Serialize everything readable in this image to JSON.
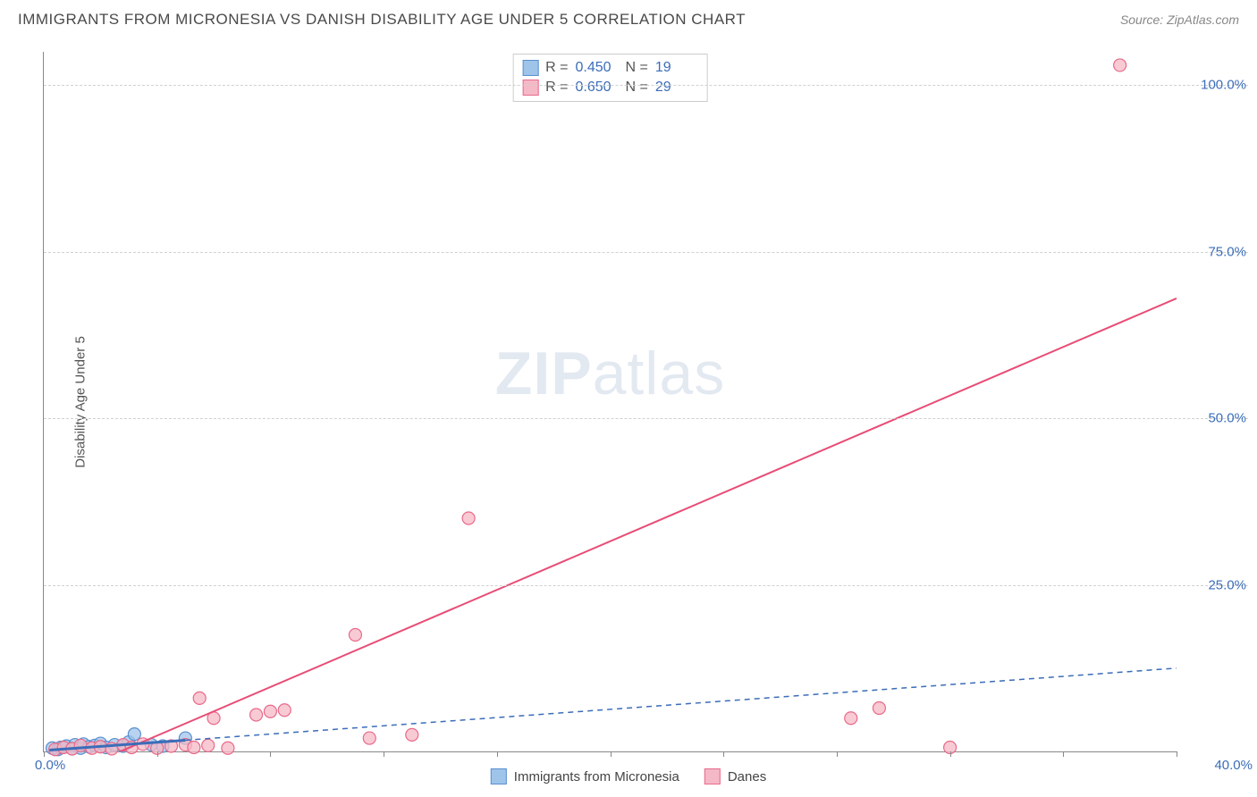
{
  "title": "IMMIGRANTS FROM MICRONESIA VS DANISH DISABILITY AGE UNDER 5 CORRELATION CHART",
  "source": "Source: ZipAtlas.com",
  "watermark_zip": "ZIP",
  "watermark_atlas": "atlas",
  "y_axis_label": "Disability Age Under 5",
  "chart": {
    "type": "scatter",
    "xlim": [
      0,
      40
    ],
    "ylim": [
      0,
      105
    ],
    "x_origin_label": "0.0%",
    "x_max_label": "40.0%",
    "y_ticks": [
      {
        "value": 25,
        "label": "25.0%"
      },
      {
        "value": 50,
        "label": "50.0%"
      },
      {
        "value": 75,
        "label": "75.0%"
      },
      {
        "value": 100,
        "label": "100.0%"
      }
    ],
    "x_tick_positions": [
      0,
      4,
      8,
      12,
      16,
      20,
      24,
      28,
      32,
      36,
      40
    ],
    "background_color": "#ffffff",
    "grid_color": "#d0d0d0",
    "axis_color": "#888888",
    "label_color": "#3b6db8",
    "series": [
      {
        "name": "Immigrants from Micronesia",
        "marker_color_fill": "#9fc4ea",
        "marker_color_stroke": "#5a8fd0",
        "marker_opacity": 0.75,
        "marker_radius": 7,
        "stats": {
          "R": "0.450",
          "N": "19"
        },
        "trend": {
          "style": "solid_then_dashed",
          "solid_until_x": 5.0,
          "color": "#3b6db8",
          "width": 2,
          "x1": 0.2,
          "y1": 0.2,
          "x2": 40,
          "y2": 12.5
        },
        "points": [
          {
            "x": 0.3,
            "y": 0.5
          },
          {
            "x": 0.5,
            "y": 0.3
          },
          {
            "x": 0.6,
            "y": 0.6
          },
          {
            "x": 0.8,
            "y": 0.8
          },
          {
            "x": 1.0,
            "y": 0.4
          },
          {
            "x": 1.1,
            "y": 1.0
          },
          {
            "x": 1.3,
            "y": 0.5
          },
          {
            "x": 1.4,
            "y": 1.1
          },
          {
            "x": 1.6,
            "y": 0.7
          },
          {
            "x": 1.8,
            "y": 0.9
          },
          {
            "x": 2.0,
            "y": 1.2
          },
          {
            "x": 2.2,
            "y": 0.6
          },
          {
            "x": 2.5,
            "y": 1.0
          },
          {
            "x": 2.8,
            "y": 0.8
          },
          {
            "x": 3.0,
            "y": 1.4
          },
          {
            "x": 3.2,
            "y": 2.6
          },
          {
            "x": 3.8,
            "y": 1.0
          },
          {
            "x": 5.0,
            "y": 2.0
          },
          {
            "x": 4.2,
            "y": 0.8
          }
        ]
      },
      {
        "name": "Danes",
        "marker_color_fill": "#f5b8c6",
        "marker_color_stroke": "#e86a8a",
        "marker_opacity": 0.75,
        "marker_radius": 7,
        "stats": {
          "R": "0.650",
          "N": "29"
        },
        "trend": {
          "style": "solid",
          "color": "#e84d76",
          "width": 2,
          "x1": 2.7,
          "y1": 0.0,
          "x2": 40,
          "y2": 68.0
        },
        "points": [
          {
            "x": 0.4,
            "y": 0.3
          },
          {
            "x": 0.7,
            "y": 0.6
          },
          {
            "x": 1.0,
            "y": 0.4
          },
          {
            "x": 1.3,
            "y": 0.9
          },
          {
            "x": 1.7,
            "y": 0.5
          },
          {
            "x": 2.0,
            "y": 0.7
          },
          {
            "x": 2.4,
            "y": 0.4
          },
          {
            "x": 2.8,
            "y": 1.0
          },
          {
            "x": 3.1,
            "y": 0.6
          },
          {
            "x": 3.5,
            "y": 1.1
          },
          {
            "x": 4.0,
            "y": 0.5
          },
          {
            "x": 4.5,
            "y": 0.8
          },
          {
            "x": 5.0,
            "y": 1.0
          },
          {
            "x": 5.3,
            "y": 0.6
          },
          {
            "x": 5.8,
            "y": 0.9
          },
          {
            "x": 6.5,
            "y": 0.5
          },
          {
            "x": 5.5,
            "y": 8.0
          },
          {
            "x": 6.0,
            "y": 5.0
          },
          {
            "x": 7.5,
            "y": 5.5
          },
          {
            "x": 8.0,
            "y": 6.0
          },
          {
            "x": 8.5,
            "y": 6.2
          },
          {
            "x": 11.0,
            "y": 17.5
          },
          {
            "x": 11.5,
            "y": 2.0
          },
          {
            "x": 13.0,
            "y": 2.5
          },
          {
            "x": 15.0,
            "y": 35.0
          },
          {
            "x": 28.5,
            "y": 5.0
          },
          {
            "x": 29.5,
            "y": 6.5
          },
          {
            "x": 32.0,
            "y": 0.6
          },
          {
            "x": 38.0,
            "y": 103.0
          }
        ]
      }
    ]
  },
  "legend": {
    "series1_label": "Immigrants from Micronesia",
    "series2_label": "Danes"
  },
  "stats_box": {
    "r_label": "R =",
    "n_label": "N ="
  }
}
